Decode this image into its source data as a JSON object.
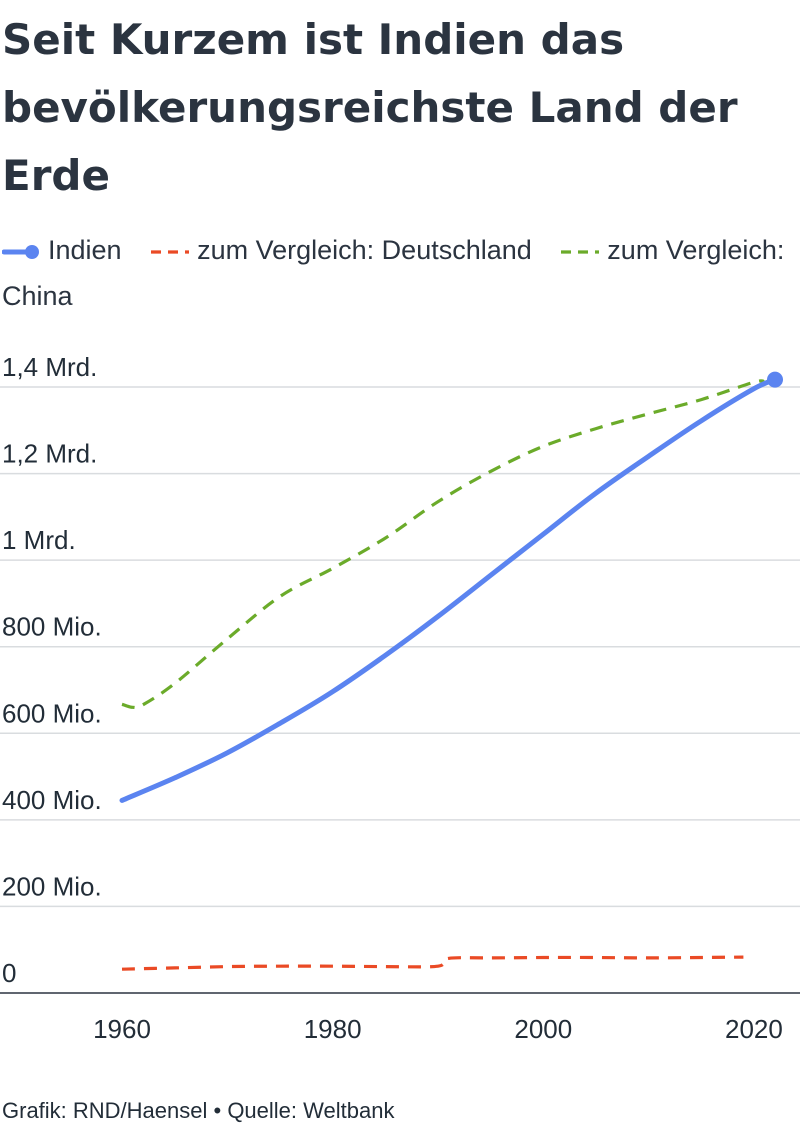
{
  "title": "Seit Kurzem ist Indien das bevölkerungsreichste Land der Erde",
  "footer": "Grafik: RND/Haensel • Quelle: Weltbank",
  "chart_data": {
    "type": "line",
    "title": "Seit Kurzem ist Indien das bevölkerungsreichste Land der Erde",
    "xlabel": "",
    "ylabel": "",
    "xlim": [
      1960,
      2022
    ],
    "ylim": [
      0,
      1400000000
    ],
    "grid": true,
    "legend_position": "top",
    "x_ticks": [
      1960,
      1980,
      2000,
      2020
    ],
    "x_tick_labels": [
      "1960",
      "1980",
      "2000",
      "2020"
    ],
    "y_ticks": [
      0,
      200000000,
      400000000,
      600000000,
      800000000,
      1000000000,
      1200000000,
      1400000000
    ],
    "y_tick_labels": [
      "0",
      "200 Mio.",
      "400 Mio.",
      "600 Mio.",
      "800 Mio.",
      "1 Mrd.",
      "1,2 Mrd.",
      "1,4 Mrd."
    ],
    "series": [
      {
        "name": "Indien",
        "color": "#5b84f0",
        "style": "solid",
        "end_marker": true,
        "x": [
          1960,
          1965,
          1970,
          1975,
          1980,
          1985,
          1990,
          1995,
          2000,
          2005,
          2010,
          2015,
          2020,
          2022
        ],
        "y": [
          445000000,
          497000000,
          555000000,
          623000000,
          696000000,
          780000000,
          870000000,
          965000000,
          1060000000,
          1155000000,
          1240000000,
          1322000000,
          1396000000,
          1417000000
        ]
      },
      {
        "name": "zum Vergleich: Deutschland",
        "color": "#ea4a25",
        "style": "dashed",
        "end_marker": false,
        "x": [
          1960,
          1965,
          1970,
          1975,
          1980,
          1985,
          1990,
          1991,
          1995,
          2000,
          2005,
          2010,
          2015,
          2019
        ],
        "y": [
          55000000,
          58000000,
          61000000,
          62000000,
          62000000,
          61000000,
          62000000,
          80000000,
          81000000,
          82000000,
          82000000,
          81000000,
          82000000,
          83000000
        ]
      },
      {
        "name": "zum Vergleich: China",
        "color": "#6bab2a",
        "style": "dashed",
        "end_marker": false,
        "x": [
          1960,
          1961,
          1962,
          1965,
          1970,
          1975,
          1980,
          1985,
          1990,
          1995,
          2000,
          2005,
          2010,
          2015,
          2020,
          2021
        ],
        "y": [
          667000000,
          660000000,
          666000000,
          715000000,
          818000000,
          916000000,
          981000000,
          1051000000,
          1135000000,
          1205000000,
          1263000000,
          1304000000,
          1338000000,
          1371000000,
          1411000000,
          1412000000
        ]
      }
    ]
  }
}
